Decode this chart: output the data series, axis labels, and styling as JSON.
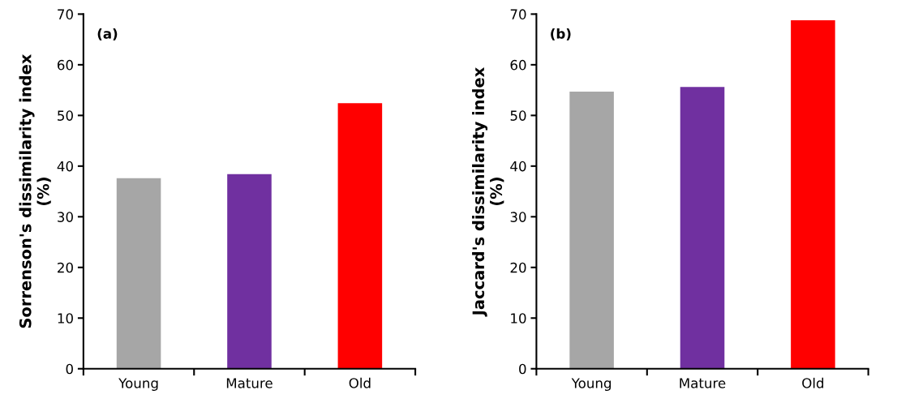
{
  "chart_data": [
    {
      "type": "bar",
      "categories": [
        "Young",
        "Mature",
        "Old"
      ],
      "values": [
        37.6,
        38.4,
        52.4
      ],
      "colors": [
        "#a6a6a6",
        "#7030a0",
        "#ff0000"
      ],
      "ylabel": "Sorrenson's dissimilarity index\n(%)",
      "ylim": [
        0,
        70
      ],
      "yticks": [
        0,
        10,
        20,
        30,
        40,
        50,
        60,
        70
      ],
      "annotations": [
        "(a)"
      ],
      "grid": false,
      "legend": false
    },
    {
      "type": "bar",
      "categories": [
        "Young",
        "Mature",
        "Old"
      ],
      "values": [
        54.7,
        55.6,
        68.8
      ],
      "colors": [
        "#a6a6a6",
        "#7030a0",
        "#ff0000"
      ],
      "ylabel": "Jaccard's dissimilarity index\n(%)",
      "ylim": [
        0,
        70
      ],
      "yticks": [
        0,
        10,
        20,
        30,
        40,
        50,
        60,
        70
      ],
      "annotations": [
        "(b)"
      ],
      "grid": false,
      "legend": false
    }
  ]
}
